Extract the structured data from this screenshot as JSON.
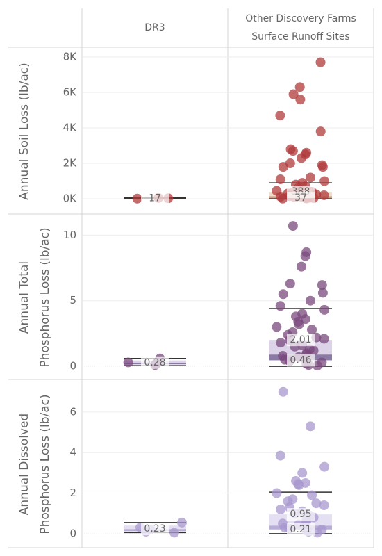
{
  "columns": [
    [
      "DR3"
    ],
    [
      "Other Discovery Farms",
      "Surface Runoff Sites"
    ]
  ],
  "chart_data": [
    {
      "type": "strip-box",
      "y_label": [
        "Annual Soil Loss (lb/ac)"
      ],
      "color": "#b0393b",
      "box_colors": [
        "#c9a38a",
        "#f0dcc8"
      ],
      "ylim": [
        -860,
        8470
      ],
      "yticks": [
        {
          "value": 0,
          "label": "0K"
        },
        {
          "value": 2000,
          "label": "2K"
        },
        {
          "value": 4000,
          "label": "4K"
        },
        {
          "value": 6000,
          "label": "6K"
        },
        {
          "value": 8000,
          "label": "8K"
        }
      ],
      "series": [
        {
          "values": [
            10,
            30,
            50
          ],
          "box": {
            "low": 5,
            "q1": 10,
            "median": 17,
            "q3": 30,
            "high": 50
          },
          "labels": [
            17
          ]
        },
        {
          "values": [
            7700,
            6300,
            5900,
            5600,
            4700,
            3800,
            2800,
            2700,
            2600,
            2500,
            2300,
            2000,
            1900,
            1800,
            1800,
            1200,
            1100,
            1000,
            900,
            800,
            700,
            600,
            500,
            450,
            400,
            350,
            300,
            250,
            200,
            150,
            120,
            100,
            80,
            60,
            40,
            30,
            20,
            10
          ],
          "box": {
            "low": 0,
            "q1": 37,
            "median": 150,
            "q3": 388,
            "high": 900
          },
          "labels": [
            388,
            37
          ]
        }
      ]
    },
    {
      "type": "strip-box",
      "y_label": [
        "Annual Total",
        "Phosphorus Loss (lb/ac)"
      ],
      "color": "#7a4a7e",
      "box_colors": [
        "#8c7aa6",
        "#dcd3e8"
      ],
      "ylim": [
        -1.0,
        11.5
      ],
      "yticks": [
        0,
        5,
        10
      ],
      "series": [
        {
          "values": [
            0.1,
            0.15,
            0.2,
            0.3,
            0.6
          ],
          "box": {
            "low": 0.05,
            "q1": 0.15,
            "median": 0.28,
            "q3": 0.45,
            "high": 0.6
          },
          "labels": [
            0.28
          ]
        },
        {
          "values": [
            10.7,
            8.7,
            8.4,
            7.6,
            6.3,
            6.2,
            5.6,
            5.5,
            5.0,
            4.6,
            4.3,
            4.0,
            3.8,
            3.6,
            3.4,
            3.2,
            3.0,
            2.8,
            2.6,
            2.4,
            2.2,
            2.1,
            2.0,
            1.8,
            1.6,
            1.5,
            1.3,
            1.2,
            1.0,
            0.9,
            0.8,
            0.7,
            0.6,
            0.5,
            0.4,
            0.3,
            0.2,
            0.1,
            0.05
          ],
          "box": {
            "low": 0,
            "q1": 0.46,
            "median": 0.9,
            "q3": 2.01,
            "high": 4.4
          },
          "labels": [
            2.01,
            0.46
          ]
        }
      ]
    },
    {
      "type": "strip-box",
      "y_label": [
        "Annual Dissolved",
        "Phosphorus Loss (lb/ac)"
      ],
      "color": "#a898cf",
      "box_colors": [
        "#b8acd8",
        "#e4dff2"
      ],
      "ylim": [
        -0.69,
        7.54
      ],
      "yticks": [
        0,
        2,
        4,
        6
      ],
      "series": [
        {
          "values": [
            0.05,
            0.1,
            0.2,
            0.3,
            0.55
          ],
          "box": {
            "low": 0.05,
            "q1": 0.12,
            "median": 0.23,
            "q3": 0.4,
            "high": 0.55
          },
          "labels": [
            0.23
          ]
        },
        {
          "values": [
            7.0,
            5.3,
            3.85,
            3.3,
            3.0,
            2.6,
            2.5,
            2.45,
            2.4,
            2.0,
            1.9,
            1.7,
            1.6,
            1.5,
            1.4,
            1.3,
            1.2,
            1.1,
            1.0,
            0.9,
            0.8,
            0.7,
            0.6,
            0.5,
            0.45,
            0.4,
            0.3,
            0.25,
            0.2,
            0.15,
            0.1,
            0.05
          ],
          "box": {
            "low": 0,
            "q1": 0.21,
            "median": 0.4,
            "q3": 0.95,
            "high": 2.05
          },
          "labels": [
            0.95,
            0.21
          ]
        }
      ]
    }
  ]
}
